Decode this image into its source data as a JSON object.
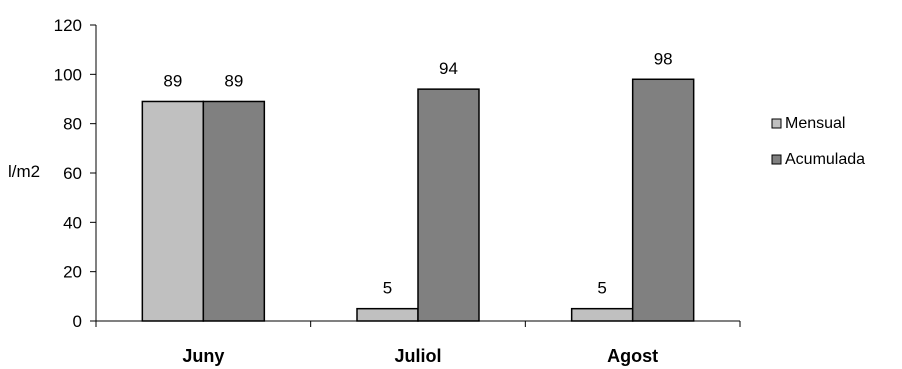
{
  "chart_data": {
    "type": "bar",
    "categories": [
      "Juny",
      "Juliol",
      "Agost"
    ],
    "series": [
      {
        "name": "Mensual",
        "values": [
          89,
          5,
          5
        ],
        "color": "#c0c0c0"
      },
      {
        "name": "Acumulada",
        "values": [
          89,
          94,
          98
        ],
        "color": "#808080"
      }
    ],
    "data_labels": [
      [
        "89",
        "5",
        "5"
      ],
      [
        "89",
        "94",
        "98"
      ]
    ],
    "ylabel": "l/m2",
    "xlabel": "",
    "ylim": [
      0,
      120
    ],
    "yticks": [
      0,
      20,
      40,
      60,
      80,
      100,
      120
    ],
    "grid": false,
    "legend_position": "right"
  }
}
